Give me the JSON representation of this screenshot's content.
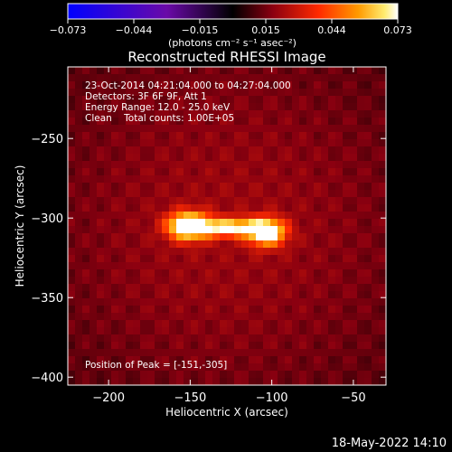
{
  "colorbar": {
    "ticks": [
      "-0.073",
      "-0.044",
      "-0.015",
      "0.015",
      "0.044",
      "0.073"
    ],
    "unit_label": "(photons cm⁻² s⁻¹ asec⁻²)"
  },
  "info": {
    "time_range": "23-Oct-2014 04:21:04.000 to 04:27:04.000",
    "detectors": "Detectors: 3F 6F 9F, Att 1",
    "energy_range": "Energy Range: 12.0 - 25.0 keV",
    "method": "Clean    Total counts: 1.00E+05",
    "peak": "Position of Peak = [-151,-305]"
  },
  "timestamp": "18-May-2022 14:10",
  "chart_data": {
    "type": "heatmap",
    "title": "Reconstructed RHESSI Image",
    "xlabel": "Heliocentric X (arcsec)",
    "ylabel": "Heliocentric Y (arcsec)",
    "xlim": [
      -225,
      -30
    ],
    "ylim": [
      -405,
      -205
    ],
    "x_ticks": [
      -200,
      -150,
      -100,
      -50
    ],
    "y_ticks": [
      -250,
      -300,
      -350,
      -400
    ],
    "x_tick_labels": [
      "−200",
      "−150",
      "−100",
      "−50"
    ],
    "y_tick_labels": [
      "−250",
      "−300",
      "−350",
      "−400"
    ],
    "colorbar_range": [
      -0.073,
      0.073
    ],
    "colorscale": "red-temperature",
    "background_level": 0.018,
    "sources": [
      {
        "x": -151,
        "y": -305,
        "sx": 9,
        "sy": 6,
        "peak": 0.073
      },
      {
        "x": -125,
        "y": -306,
        "sx": 13,
        "sy": 4,
        "peak": 0.052
      },
      {
        "x": -103,
        "y": -309,
        "sx": 8,
        "sy": 6,
        "peak": 0.064
      }
    ]
  }
}
